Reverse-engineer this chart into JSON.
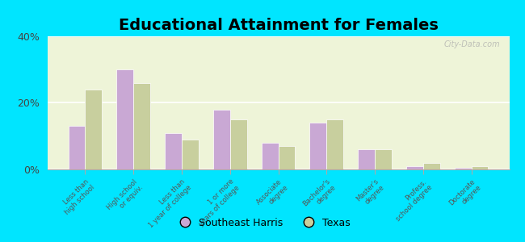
{
  "title": "Educational Attainment for Females",
  "categories": [
    "Less than\nhigh school",
    "High school\nor equiv.",
    "Less than\n1 year of college",
    "1 or more\nyears of college",
    "Associate\ndegree",
    "Bachelor's\ndegree",
    "Master's\ndegree",
    "Profess.\nschool degree",
    "Doctorate\ndegree"
  ],
  "southeast_harris": [
    13,
    30,
    11,
    18,
    8,
    14,
    6,
    1,
    0.5
  ],
  "texas": [
    24,
    26,
    9,
    15,
    7,
    15,
    6,
    2,
    1
  ],
  "bar_color_se": "#c9a8d4",
  "bar_color_tx": "#c8cf9e",
  "bg_outer": "#00e5ff",
  "bg_plot_top": "#e8f0c8",
  "bg_plot_bottom": "#f5f8e8",
  "ylim": [
    0,
    40
  ],
  "yticks": [
    0,
    20,
    40
  ],
  "ytick_labels": [
    "0%",
    "20%",
    "40%"
  ],
  "legend_se": "Southeast Harris",
  "legend_tx": "Texas",
  "title_fontsize": 14,
  "watermark": "City-Data.com",
  "bar_width": 0.35
}
